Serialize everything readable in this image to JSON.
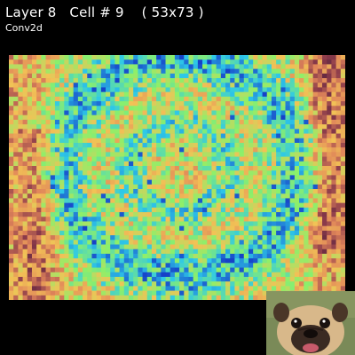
{
  "header": {
    "title": "Layer 8   Cell # 9    ( 53x73 )",
    "subtitle": "Conv2d"
  },
  "activation_map": {
    "grid": {
      "rows": 53,
      "cols": 73
    },
    "colormap": {
      "low": "#2a0f33",
      "mid_low": "#8a3a4a",
      "mid": "#e0855a",
      "mid_high": "#f2c256",
      "high": "#8cf06a",
      "peak": "#2ec8e8",
      "max": "#1640c8"
    },
    "icon": "activation-heatmap"
  },
  "thumbnail": {
    "icon": "pug-photo-icon",
    "colors": {
      "background": "#7a8a58",
      "fur": "#d8b88a",
      "mask": "#3a2a22"
    }
  }
}
